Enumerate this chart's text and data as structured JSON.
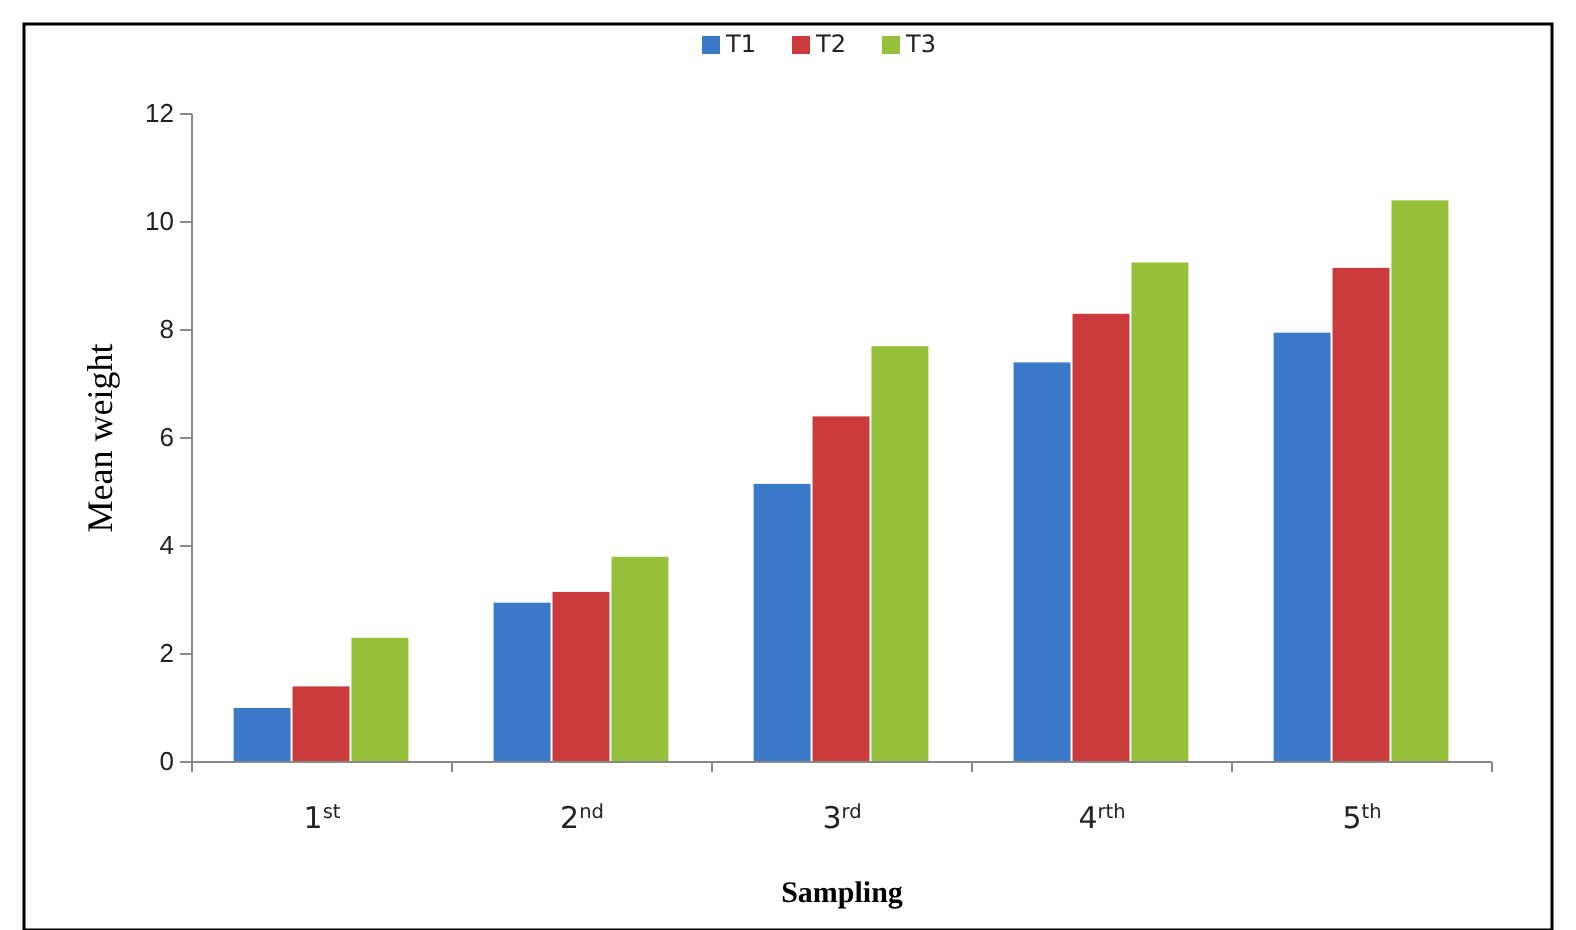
{
  "chart_data": {
    "type": "bar",
    "xlabel": "Sampling",
    "ylabel": "Mean weight",
    "categories": [
      "1$^{st}$",
      "2$^{nd}$",
      "3$^{rd}$",
      "4$^{rth}$",
      "5$^{th}$"
    ],
    "series": [
      {
        "name": "T1",
        "color": "#3a78c9",
        "values": [
          1.0,
          2.95,
          5.15,
          7.4,
          7.95
        ]
      },
      {
        "name": "T2",
        "color": "#cc3b3b",
        "values": [
          1.4,
          3.15,
          6.4,
          8.3,
          9.15
        ]
      },
      {
        "name": "T3",
        "color": "#96c03a",
        "values": [
          2.3,
          3.8,
          7.7,
          9.25,
          10.4
        ]
      }
    ],
    "ylim": [
      0,
      12
    ],
    "yticks": [
      0,
      2,
      4,
      6,
      8,
      10,
      12
    ],
    "grid": false,
    "legend": "top"
  }
}
